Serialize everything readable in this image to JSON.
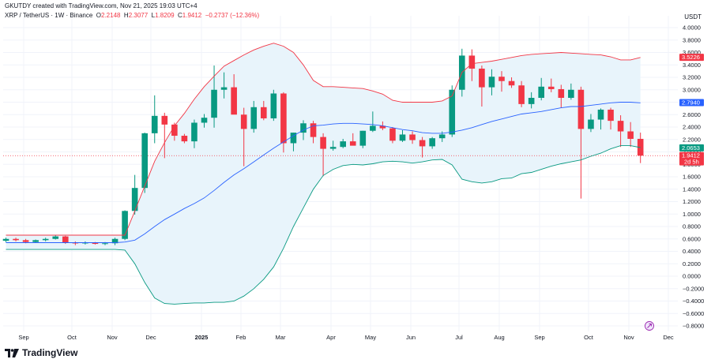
{
  "header": {
    "creator_line": "GKUTDY created with TradingView.com, Nov 21, 2025 19:03 UTC+4",
    "symbol": "XRP / TetherUS · 1W · Binance",
    "o_label": "O",
    "o_value": "2.2148",
    "h_label": "H",
    "h_value": "2.3077",
    "l_label": "L",
    "l_value": "1.8209",
    "c_label": "C",
    "c_value": "1.9412",
    "change": "−0.2737 (−12.36%)"
  },
  "currency": "USDT",
  "brand": {
    "name": "TradingView"
  },
  "colors": {
    "up": "#089981",
    "down": "#f23645",
    "upper_band": "#f23645",
    "basis": "#2962ff",
    "lower_band": "#089981",
    "band_fill": "#e8f4fb"
  },
  "chart_data": {
    "type": "candlestick",
    "x_tick_labels": [
      "Sep",
      "Oct",
      "Nov",
      "Dec",
      "2025",
      "Feb",
      "Mar",
      "Apr",
      "May",
      "Jun",
      "Jul",
      "Aug",
      "Sep",
      "Oct",
      "Nov",
      "Dec"
    ],
    "y_tick_labels": [
      "4.0000",
      "3.8000",
      "3.6000",
      "3.4000",
      "3.2000",
      "3.0000",
      "2.8000",
      "2.6000",
      "2.4000",
      "2.2000",
      "2.0000",
      "1.8000",
      "1.6000",
      "1.4000",
      "1.2000",
      "1.0000",
      "0.8000",
      "0.6000",
      "0.4000",
      "0.2000",
      "0.0000",
      "−0.2000",
      "−0.4000",
      "−0.6000",
      "−0.8000"
    ],
    "ylim": [
      -0.86,
      4.05
    ],
    "price_tags": [
      {
        "value": 3.5226,
        "label": "3.5226",
        "color": "#f23645"
      },
      {
        "value": 2.794,
        "label": "2.7940",
        "color": "#2962ff"
      },
      {
        "value": 2.0653,
        "label": "2.0653",
        "color": "#089981"
      },
      {
        "value": 1.9412,
        "label": "1.9412",
        "color": "#f23645",
        "sub": "2d 5h"
      }
    ],
    "candles": [
      {
        "o": 0.57,
        "h": 0.62,
        "l": 0.55,
        "c": 0.6
      },
      {
        "o": 0.6,
        "h": 0.62,
        "l": 0.56,
        "c": 0.58
      },
      {
        "o": 0.58,
        "h": 0.6,
        "l": 0.53,
        "c": 0.55
      },
      {
        "o": 0.55,
        "h": 0.59,
        "l": 0.54,
        "c": 0.58
      },
      {
        "o": 0.58,
        "h": 0.62,
        "l": 0.56,
        "c": 0.6
      },
      {
        "o": 0.6,
        "h": 0.66,
        "l": 0.59,
        "c": 0.64
      },
      {
        "o": 0.64,
        "h": 0.65,
        "l": 0.52,
        "c": 0.54
      },
      {
        "o": 0.54,
        "h": 0.56,
        "l": 0.5,
        "c": 0.53
      },
      {
        "o": 0.53,
        "h": 0.56,
        "l": 0.51,
        "c": 0.54
      },
      {
        "o": 0.54,
        "h": 0.55,
        "l": 0.51,
        "c": 0.52
      },
      {
        "o": 0.52,
        "h": 0.55,
        "l": 0.5,
        "c": 0.53
      },
      {
        "o": 0.53,
        "h": 0.62,
        "l": 0.5,
        "c": 0.6
      },
      {
        "o": 0.6,
        "h": 1.06,
        "l": 0.58,
        "c": 1.05
      },
      {
        "o": 1.05,
        "h": 1.63,
        "l": 0.99,
        "c": 1.42
      },
      {
        "o": 1.42,
        "h": 2.31,
        "l": 1.34,
        "c": 2.3
      },
      {
        "o": 2.3,
        "h": 2.91,
        "l": 2.14,
        "c": 2.58
      },
      {
        "o": 2.58,
        "h": 2.63,
        "l": 1.9,
        "c": 2.44
      },
      {
        "o": 2.44,
        "h": 2.47,
        "l": 2.18,
        "c": 2.26
      },
      {
        "o": 2.26,
        "h": 2.29,
        "l": 2.14,
        "c": 2.17
      },
      {
        "o": 2.17,
        "h": 2.52,
        "l": 2.06,
        "c": 2.47
      },
      {
        "o": 2.47,
        "h": 2.61,
        "l": 2.39,
        "c": 2.55
      },
      {
        "o": 2.55,
        "h": 3.39,
        "l": 2.39,
        "c": 3.0
      },
      {
        "o": 3.0,
        "h": 3.28,
        "l": 2.86,
        "c": 3.04
      },
      {
        "o": 3.04,
        "h": 3.25,
        "l": 2.61,
        "c": 2.6
      },
      {
        "o": 2.6,
        "h": 2.71,
        "l": 1.77,
        "c": 2.37
      },
      {
        "o": 2.37,
        "h": 2.82,
        "l": 2.31,
        "c": 2.72
      },
      {
        "o": 2.72,
        "h": 2.82,
        "l": 2.51,
        "c": 2.54
      },
      {
        "o": 2.54,
        "h": 3.0,
        "l": 2.5,
        "c": 2.94
      },
      {
        "o": 2.94,
        "h": 2.96,
        "l": 1.99,
        "c": 2.14
      },
      {
        "o": 2.14,
        "h": 2.31,
        "l": 2.01,
        "c": 2.31
      },
      {
        "o": 2.31,
        "h": 2.51,
        "l": 2.19,
        "c": 2.46
      },
      {
        "o": 2.46,
        "h": 2.5,
        "l": 2.14,
        "c": 2.24
      },
      {
        "o": 2.24,
        "h": 2.3,
        "l": 1.61,
        "c": 2.05
      },
      {
        "o": 2.05,
        "h": 2.18,
        "l": 2.02,
        "c": 2.08
      },
      {
        "o": 2.08,
        "h": 2.21,
        "l": 2.06,
        "c": 2.17
      },
      {
        "o": 2.17,
        "h": 2.3,
        "l": 2.11,
        "c": 2.1
      },
      {
        "o": 2.1,
        "h": 2.34,
        "l": 2.06,
        "c": 2.34
      },
      {
        "o": 2.34,
        "h": 2.65,
        "l": 2.32,
        "c": 2.42
      },
      {
        "o": 2.42,
        "h": 2.49,
        "l": 2.35,
        "c": 2.38
      },
      {
        "o": 2.38,
        "h": 2.4,
        "l": 2.14,
        "c": 2.18
      },
      {
        "o": 2.18,
        "h": 2.35,
        "l": 2.16,
        "c": 2.28
      },
      {
        "o": 2.28,
        "h": 2.33,
        "l": 2.13,
        "c": 2.19
      },
      {
        "o": 2.19,
        "h": 2.24,
        "l": 1.91,
        "c": 2.09
      },
      {
        "o": 2.09,
        "h": 2.24,
        "l": 2.05,
        "c": 2.22
      },
      {
        "o": 2.22,
        "h": 2.33,
        "l": 2.16,
        "c": 2.28
      },
      {
        "o": 2.28,
        "h": 3.07,
        "l": 2.24,
        "c": 3.0
      },
      {
        "o": 3.0,
        "h": 3.66,
        "l": 2.89,
        "c": 3.55
      },
      {
        "o": 3.55,
        "h": 3.65,
        "l": 3.14,
        "c": 3.34
      },
      {
        "o": 3.34,
        "h": 3.39,
        "l": 2.73,
        "c": 3.04
      },
      {
        "o": 3.04,
        "h": 3.33,
        "l": 2.91,
        "c": 3.21
      },
      {
        "o": 3.21,
        "h": 3.3,
        "l": 2.97,
        "c": 3.14
      },
      {
        "o": 3.14,
        "h": 3.2,
        "l": 3.03,
        "c": 3.07
      },
      {
        "o": 3.07,
        "h": 3.14,
        "l": 2.72,
        "c": 2.77
      },
      {
        "o": 2.77,
        "h": 2.96,
        "l": 2.7,
        "c": 2.87
      },
      {
        "o": 2.87,
        "h": 3.19,
        "l": 2.83,
        "c": 3.05
      },
      {
        "o": 3.05,
        "h": 3.18,
        "l": 2.96,
        "c": 3.01
      },
      {
        "o": 3.01,
        "h": 3.08,
        "l": 2.71,
        "c": 2.87
      },
      {
        "o": 2.87,
        "h": 3.1,
        "l": 2.84,
        "c": 3.0
      },
      {
        "o": 3.0,
        "h": 3.05,
        "l": 1.25,
        "c": 2.37
      },
      {
        "o": 2.37,
        "h": 2.61,
        "l": 2.32,
        "c": 2.52
      },
      {
        "o": 2.52,
        "h": 2.7,
        "l": 2.36,
        "c": 2.68
      },
      {
        "o": 2.68,
        "h": 2.71,
        "l": 2.36,
        "c": 2.5
      },
      {
        "o": 2.5,
        "h": 2.59,
        "l": 2.08,
        "c": 2.33
      },
      {
        "o": 2.33,
        "h": 2.48,
        "l": 2.08,
        "c": 2.21
      },
      {
        "o": 2.21,
        "h": 2.31,
        "l": 1.82,
        "c": 1.94
      }
    ],
    "bollinger": {
      "upper": [
        0.66,
        0.66,
        0.66,
        0.66,
        0.66,
        0.66,
        0.66,
        0.66,
        0.66,
        0.66,
        0.66,
        0.66,
        0.66,
        1.05,
        1.45,
        1.85,
        2.15,
        2.42,
        2.62,
        2.85,
        3.05,
        3.22,
        3.38,
        3.47,
        3.56,
        3.64,
        3.7,
        3.75,
        3.7,
        3.6,
        3.4,
        3.15,
        3.05,
        3.05,
        3.04,
        3.03,
        3.02,
        2.98,
        2.93,
        2.83,
        2.8,
        2.8,
        2.8,
        2.8,
        2.82,
        2.9,
        3.28,
        3.42,
        3.44,
        3.46,
        3.49,
        3.52,
        3.55,
        3.57,
        3.58,
        3.59,
        3.6,
        3.59,
        3.58,
        3.57,
        3.56,
        3.53,
        3.48,
        3.48,
        3.52
      ],
      "basis": [
        0.54,
        0.54,
        0.54,
        0.54,
        0.54,
        0.54,
        0.54,
        0.54,
        0.54,
        0.54,
        0.54,
        0.54,
        0.55,
        0.58,
        0.68,
        0.8,
        0.91,
        1.0,
        1.09,
        1.17,
        1.26,
        1.38,
        1.51,
        1.63,
        1.73,
        1.84,
        1.95,
        2.06,
        2.16,
        2.26,
        2.35,
        2.42,
        2.43,
        2.45,
        2.46,
        2.46,
        2.45,
        2.44,
        2.42,
        2.39,
        2.36,
        2.34,
        2.31,
        2.3,
        2.3,
        2.32,
        2.35,
        2.39,
        2.44,
        2.49,
        2.53,
        2.57,
        2.61,
        2.63,
        2.65,
        2.68,
        2.71,
        2.73,
        2.73,
        2.75,
        2.77,
        2.79,
        2.8,
        2.8,
        2.79
      ],
      "lower": [
        0.43,
        0.43,
        0.43,
        0.43,
        0.43,
        0.43,
        0.43,
        0.43,
        0.43,
        0.43,
        0.43,
        0.43,
        0.42,
        0.2,
        -0.1,
        -0.35,
        -0.44,
        -0.45,
        -0.44,
        -0.43,
        -0.43,
        -0.42,
        -0.42,
        -0.4,
        -0.32,
        -0.2,
        -0.05,
        0.15,
        0.45,
        0.8,
        1.1,
        1.4,
        1.62,
        1.72,
        1.78,
        1.8,
        1.79,
        1.81,
        1.84,
        1.85,
        1.84,
        1.82,
        1.84,
        1.87,
        1.88,
        1.79,
        1.56,
        1.52,
        1.5,
        1.52,
        1.57,
        1.58,
        1.65,
        1.67,
        1.72,
        1.77,
        1.81,
        1.84,
        1.87,
        1.93,
        1.98,
        2.05,
        2.1,
        2.1,
        2.07
      ]
    }
  }
}
